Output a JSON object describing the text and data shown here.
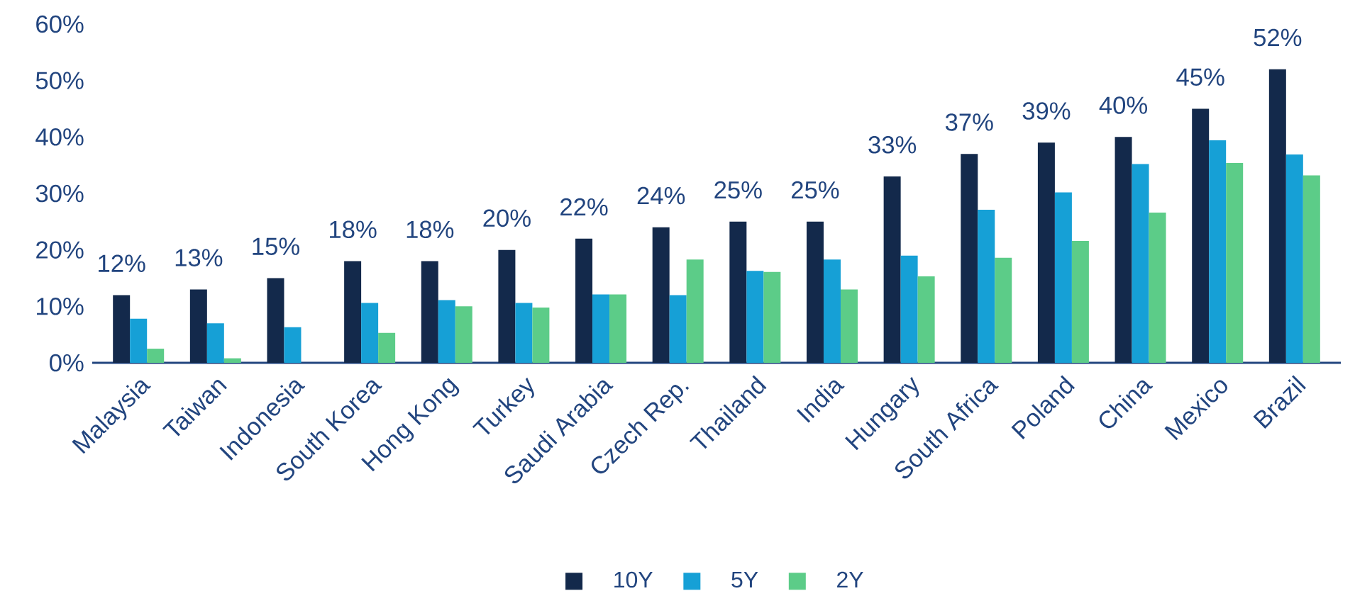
{
  "chart_data": {
    "type": "bar",
    "categories": [
      "Malaysia",
      "Taiwan",
      "Indonesia",
      "South Korea",
      "Hong Kong",
      "Turkey",
      "Saudi Arabia",
      "Czech Rep.",
      "Thailand",
      "India",
      "Hungary",
      "South Africa",
      "Poland",
      "China",
      "Mexico",
      "Brazil"
    ],
    "series": [
      {
        "name": "10Y",
        "color": "#13294b",
        "values": [
          12,
          13,
          15,
          18,
          18,
          20,
          22,
          24,
          25,
          25,
          33,
          37,
          39,
          40,
          45,
          52
        ],
        "value_labels": [
          "12%",
          "13%",
          "15%",
          "18%",
          "18%",
          "20%",
          "22%",
          "24%",
          "25%",
          "25%",
          "33%",
          "37%",
          "39%",
          "40%",
          "45%",
          "52%"
        ]
      },
      {
        "name": "5Y",
        "color": "#16a0d6",
        "values": [
          7.8,
          7.0,
          6.3,
          10.6,
          11.1,
          10.6,
          12.1,
          12,
          16.3,
          18.3,
          19,
          27.1,
          30.2,
          35.2,
          39.4,
          36.9
        ]
      },
      {
        "name": "2Y",
        "color": "#5ccc88",
        "values": [
          2.5,
          0.8,
          null,
          5.3,
          10,
          9.8,
          12.1,
          18.3,
          16.1,
          13,
          15.3,
          18.6,
          21.6,
          26.6,
          35.4,
          33.2
        ]
      }
    ],
    "ylim": [
      0,
      60
    ],
    "yticks": [
      {
        "value": 0,
        "label": "0%"
      },
      {
        "value": 10,
        "label": "10%"
      },
      {
        "value": 20,
        "label": "20%"
      },
      {
        "value": 30,
        "label": "30%"
      },
      {
        "value": 40,
        "label": "40%"
      },
      {
        "value": 50,
        "label": "50%"
      },
      {
        "value": 60,
        "label": "60%"
      }
    ],
    "legend": "bottom",
    "grid": false
  }
}
